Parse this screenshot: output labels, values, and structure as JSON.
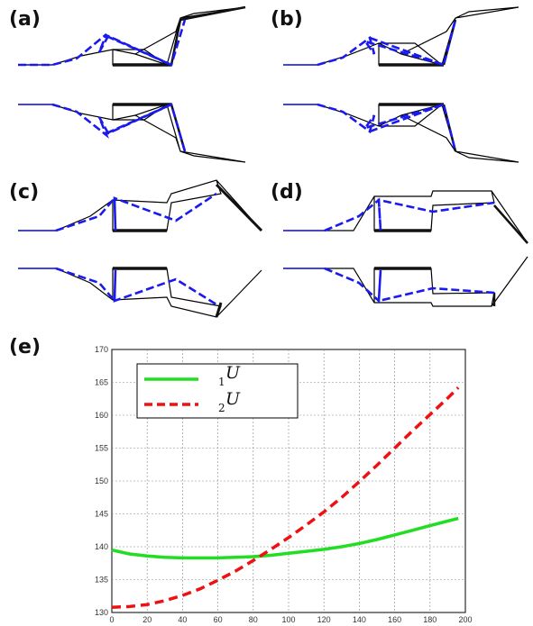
{
  "panels": {
    "a": "(a)",
    "b": "(b)",
    "c": "(c)",
    "d": "(d)",
    "e": "(e)"
  },
  "colors": {
    "outline": "#000000",
    "dashed": "#1a1aee",
    "series1": "#22dd22",
    "series2": "#ee1111"
  },
  "chart_data": {
    "type": "line",
    "title": "",
    "xlabel": "",
    "ylabel": "",
    "xlim": [
      0,
      200
    ],
    "ylim": [
      130,
      170
    ],
    "xticks": [
      0,
      20,
      40,
      60,
      80,
      100,
      120,
      140,
      160,
      180,
      200
    ],
    "yticks": [
      130,
      135,
      140,
      145,
      150,
      155,
      160,
      165,
      170
    ],
    "grid": true,
    "legend": "top-left",
    "series": [
      {
        "name": "U",
        "subscript": "1",
        "color": "#22dd22",
        "style": "solid",
        "x": [
          0,
          10,
          20,
          30,
          40,
          50,
          60,
          70,
          80,
          90,
          100,
          110,
          120,
          130,
          140,
          150,
          160,
          170,
          180,
          190,
          196
        ],
        "y": [
          139.5,
          138.9,
          138.6,
          138.4,
          138.3,
          138.3,
          138.3,
          138.4,
          138.5,
          138.7,
          139.0,
          139.3,
          139.6,
          140.0,
          140.5,
          141.1,
          141.8,
          142.5,
          143.2,
          143.9,
          144.3
        ]
      },
      {
        "name": "U",
        "subscript": "2",
        "color": "#ee1111",
        "style": "dashed",
        "x": [
          0,
          10,
          20,
          30,
          40,
          50,
          60,
          70,
          80,
          90,
          100,
          110,
          120,
          130,
          140,
          150,
          160,
          170,
          180,
          190,
          196
        ],
        "y": [
          130.8,
          130.9,
          131.2,
          131.8,
          132.6,
          133.6,
          134.9,
          136.3,
          137.9,
          139.6,
          141.4,
          143.3,
          145.3,
          147.5,
          149.9,
          152.4,
          155.0,
          157.6,
          160.1,
          162.6,
          164.2
        ]
      }
    ]
  }
}
